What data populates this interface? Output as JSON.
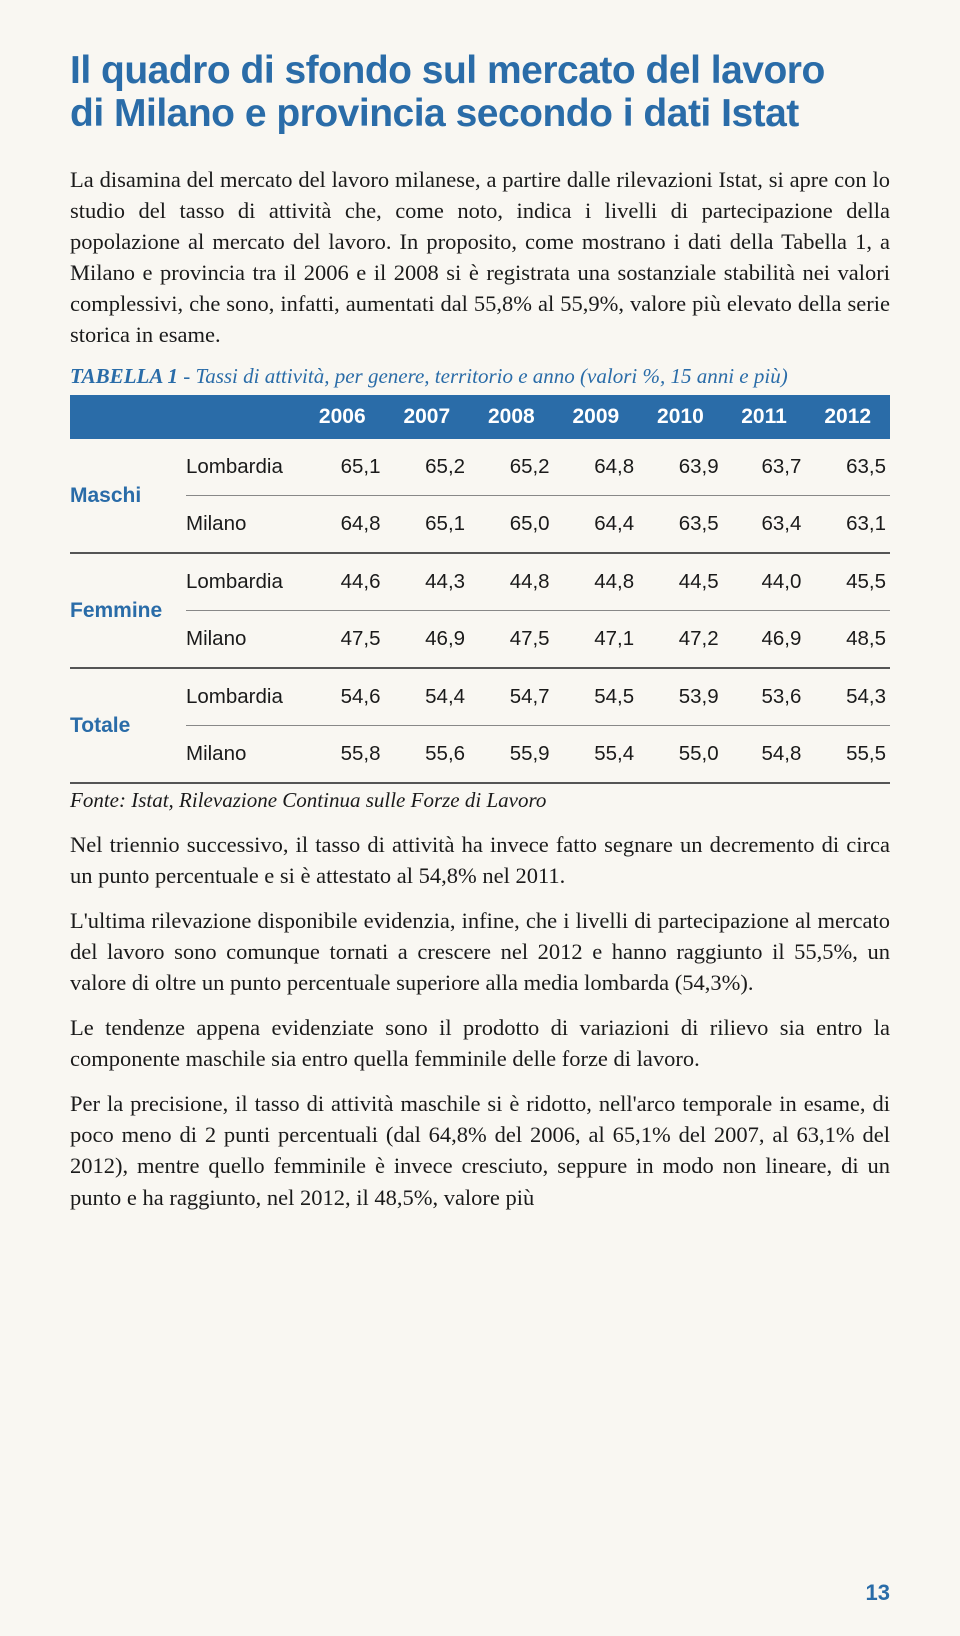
{
  "title_line1": "Il quadro di sfondo sul mercato del lavoro",
  "title_line2": "di Milano e provincia secondo i dati Istat",
  "para1": "La disamina del mercato del lavoro milanese, a partire dalle rilevazioni Istat, si apre con lo studio del tasso di attività che, come noto, indica i livelli di partecipazione della popolazione al mercato del lavoro. In proposito, come mostrano i dati della Tabella 1, a Milano e provincia tra il 2006 e il 2008 si è registrata una sostanziale stabilità nei valori complessivi, che sono, infatti, aumentati dal 55,8% al 55,9%, valore più elevato della serie storica in esame.",
  "table_caption_label": "TABELLA 1",
  "table_caption_rest": " - Tassi di attività, per genere, territorio e anno (valori %, 15 anni e più)",
  "table": {
    "years": [
      "2006",
      "2007",
      "2008",
      "2009",
      "2010",
      "2011",
      "2012"
    ],
    "groups": [
      {
        "label": "Maschi",
        "rows": [
          {
            "region": "Lombardia",
            "vals": [
              "65,1",
              "65,2",
              "65,2",
              "64,8",
              "63,9",
              "63,7",
              "63,5"
            ]
          },
          {
            "region": "Milano",
            "vals": [
              "64,8",
              "65,1",
              "65,0",
              "64,4",
              "63,5",
              "63,4",
              "63,1"
            ]
          }
        ]
      },
      {
        "label": "Femmine",
        "rows": [
          {
            "region": "Lombardia",
            "vals": [
              "44,6",
              "44,3",
              "44,8",
              "44,8",
              "44,5",
              "44,0",
              "45,5"
            ]
          },
          {
            "region": "Milano",
            "vals": [
              "47,5",
              "46,9",
              "47,5",
              "47,1",
              "47,2",
              "46,9",
              "48,5"
            ]
          }
        ]
      },
      {
        "label": "Totale",
        "rows": [
          {
            "region": "Lombardia",
            "vals": [
              "54,6",
              "54,4",
              "54,7",
              "54,5",
              "53,9",
              "53,6",
              "54,3"
            ]
          },
          {
            "region": "Milano",
            "vals": [
              "55,8",
              "55,6",
              "55,9",
              "55,4",
              "55,0",
              "54,8",
              "55,5"
            ]
          }
        ]
      }
    ]
  },
  "source": "Fonte: Istat, Rilevazione Continua sulle Forze di Lavoro",
  "para2": "Nel triennio successivo, il tasso di attività ha invece fatto segnare un decremento di circa un punto percentuale e si è attestato al 54,8% nel 2011.",
  "para3": "L'ultima rilevazione disponibile evidenzia, infine, che i livelli di partecipazione al mercato del lavoro sono comunque tornati a crescere nel 2012 e hanno raggiunto il 55,5%, un valore di oltre un punto percentuale superiore alla media lombarda (54,3%).",
  "para4": "Le tendenze appena evidenziate sono il prodotto di variazioni di rilievo sia entro la componente maschile sia entro quella femminile delle forze di lavoro.",
  "para5": "Per la precisione, il tasso di attività maschile si è ridotto, nell'arco temporale in esame, di poco meno di 2 punti percentuali (dal 64,8% del 2006, al 65,1% del 2007, al 63,1% del 2012), mentre quello femminile è invece cresciuto, seppure in modo non lineare, di un punto e ha raggiunto, nel 2012, il 48,5%, valore più",
  "page_number": "13",
  "colors": {
    "accent": "#2a6ca8",
    "bg": "#f9f7f2",
    "text": "#1a1a1a"
  }
}
